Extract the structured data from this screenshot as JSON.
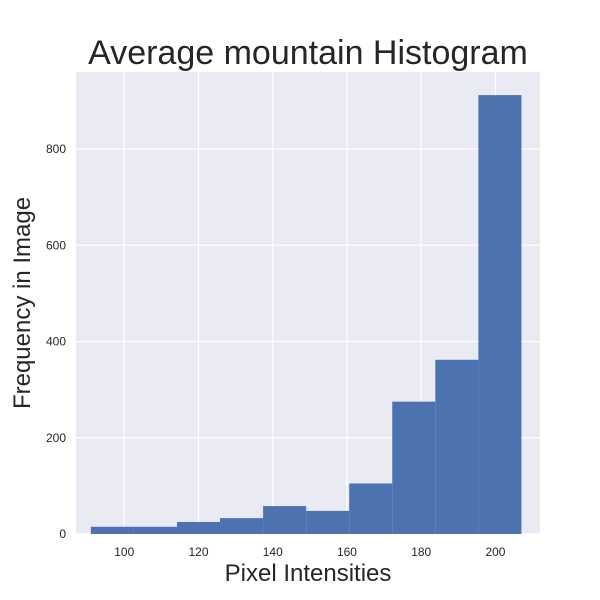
{
  "chart_data": {
    "type": "bar",
    "title": "Average mountain Histogram",
    "xlabel": "Pixel Intensities",
    "ylabel": "Frequency in Image",
    "xlim": [
      87,
      212
    ],
    "ylim": [
      0,
      960
    ],
    "xticks": [
      100,
      120,
      140,
      160,
      180,
      200
    ],
    "yticks": [
      0,
      200,
      400,
      600,
      800
    ],
    "grid": true,
    "bins": [
      {
        "x0": 91.0,
        "x1": 102.6,
        "value": 15
      },
      {
        "x0": 102.6,
        "x1": 114.2,
        "value": 15
      },
      {
        "x0": 114.2,
        "x1": 125.8,
        "value": 25
      },
      {
        "x0": 125.8,
        "x1": 137.4,
        "value": 33
      },
      {
        "x0": 137.4,
        "x1": 149.0,
        "value": 58
      },
      {
        "x0": 149.0,
        "x1": 160.6,
        "value": 48
      },
      {
        "x0": 160.6,
        "x1": 172.2,
        "value": 105
      },
      {
        "x0": 172.2,
        "x1": 183.8,
        "value": 275
      },
      {
        "x0": 183.8,
        "x1": 195.4,
        "value": 362
      },
      {
        "x0": 195.4,
        "x1": 207.0,
        "value": 912
      }
    ],
    "colors": {
      "bar": "#4c72b0",
      "background": "#eaeaf2",
      "grid": "#ffffff"
    }
  }
}
